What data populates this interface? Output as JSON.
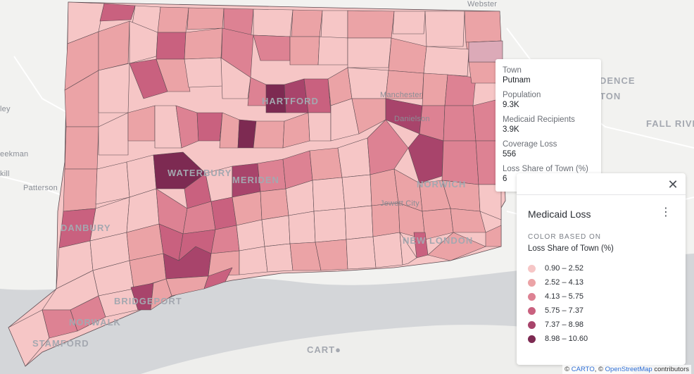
{
  "map": {
    "place_labels": [
      "Webster",
      "DENCE",
      "TON",
      "FALL RIVER",
      "ley",
      "eekman",
      "kill",
      "Patterson",
      "HARTFORD",
      "WATERBURY",
      "MERIDEN",
      "BRIDGEPORT",
      "DANBURY",
      "NORWICH",
      "NEW LONDON",
      "STAMFORD",
      "NORWALK",
      "Manchester",
      "Danielson",
      "Jewett City"
    ],
    "carto_mark": "CART●",
    "highlight_town": "Putnam"
  },
  "tooltip": {
    "fields": [
      {
        "key": "Town",
        "value": "Putnam"
      },
      {
        "key": "Population",
        "value": "9.3K"
      },
      {
        "key": "Medicaid Recipients",
        "value": "3.9K"
      },
      {
        "key": "Coverage Loss",
        "value": "556"
      },
      {
        "key": "Loss Share of Town (%)",
        "value": "6"
      }
    ]
  },
  "legend": {
    "close_icon": "✕",
    "title": "Medicaid Loss",
    "menu_icon": "⋮",
    "color_based_on": "COLOR BASED ON",
    "attribute": "Loss Share of Town (%)",
    "bins": [
      {
        "label": "0.90 – 2.52",
        "color": "#f6c6c6"
      },
      {
        "label": "2.52 – 4.13",
        "color": "#eba3a6"
      },
      {
        "label": "4.13 – 5.75",
        "color": "#dd8293"
      },
      {
        "label": "5.75 – 7.37",
        "color": "#c9617f"
      },
      {
        "label": "7.37 – 8.98",
        "color": "#a8446b"
      },
      {
        "label": "8.98 – 10.60",
        "color": "#7d2a52"
      }
    ]
  },
  "attribution": {
    "copy1": "©",
    "carto": "CARTO",
    "copy2": ", ©",
    "osm": "OpenStreetMap",
    "contributors": "contributors"
  }
}
